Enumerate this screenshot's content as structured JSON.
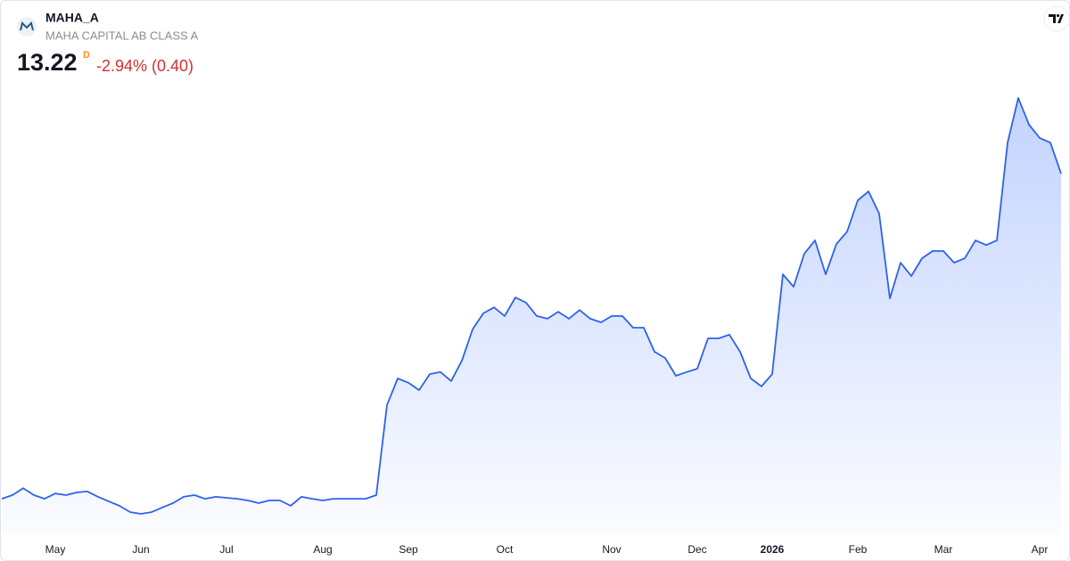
{
  "header": {
    "symbol": "MAHA_A",
    "name": "MAHA CAPITAL AB CLASS A",
    "price": "13.22",
    "interval": "D",
    "change": "-2.94% (0.40)"
  },
  "chart_data": {
    "type": "line",
    "color": "#2d62ed",
    "categories": [
      null,
      null,
      null,
      null,
      null,
      "May",
      null,
      null,
      null,
      null,
      null,
      null,
      null,
      "Jun",
      null,
      null,
      null,
      null,
      null,
      null,
      null,
      "Jul",
      null,
      null,
      null,
      null,
      null,
      null,
      null,
      null,
      "Aug",
      null,
      null,
      null,
      null,
      null,
      null,
      null,
      "Sep",
      null,
      null,
      null,
      null,
      null,
      null,
      null,
      null,
      "Oct",
      null,
      null,
      null,
      null,
      null,
      null,
      null,
      null,
      null,
      "Nov",
      null,
      null,
      null,
      null,
      null,
      null,
      null,
      "Dec",
      null,
      null,
      null,
      null,
      null,
      null,
      "2026",
      null,
      null,
      null,
      null,
      null,
      null,
      null,
      "Feb",
      null,
      null,
      null,
      null,
      null,
      null,
      null,
      "Mar",
      null,
      null,
      null,
      null,
      null,
      null,
      null,
      null,
      "Apr",
      null,
      null
    ],
    "values": [
      3.47,
      3.58,
      3.79,
      3.58,
      3.47,
      3.63,
      3.58,
      3.66,
      3.69,
      3.53,
      3.39,
      3.26,
      3.07,
      3.02,
      3.07,
      3.21,
      3.34,
      3.53,
      3.58,
      3.47,
      3.53,
      3.5,
      3.47,
      3.42,
      3.34,
      3.42,
      3.42,
      3.26,
      3.53,
      3.47,
      3.42,
      3.47,
      3.47,
      3.47,
      3.47,
      3.58,
      6.28,
      7.08,
      6.95,
      6.73,
      7.21,
      7.27,
      7.0,
      7.61,
      8.55,
      9.03,
      9.21,
      8.95,
      9.51,
      9.35,
      8.95,
      8.87,
      9.08,
      8.87,
      9.13,
      8.87,
      8.76,
      8.95,
      8.95,
      8.6,
      8.6,
      7.88,
      7.69,
      7.16,
      7.27,
      7.37,
      8.28,
      8.28,
      8.39,
      7.88,
      7.08,
      6.84,
      7.21,
      10.2,
      9.83,
      10.82,
      11.22,
      10.2,
      11.11,
      11.48,
      12.42,
      12.69,
      12.02,
      9.48,
      10.55,
      10.15,
      10.68,
      10.9,
      10.9,
      10.55,
      10.68,
      11.22,
      11.08,
      11.22,
      14.15,
      15.49,
      14.69,
      14.29,
      14.15,
      13.22
    ]
  }
}
